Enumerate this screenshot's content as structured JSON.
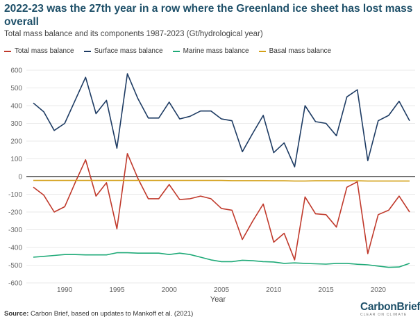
{
  "title": "2022-23 was the 27th year in a row where the Greenland ice sheet has lost mass overall",
  "subtitle": "Total mass balance and its components 1987-2023 (Gt/hydrological year)",
  "source": {
    "label": "Source:",
    "text": " Carbon Brief, based on updates to Mankoff et al. (2021)"
  },
  "logo": {
    "main": "CarbonBrief",
    "sub": "CLEAR ON CLIMATE"
  },
  "colors": {
    "total": "#c0392b",
    "surface": "#1d3b63",
    "marine": "#1faa78",
    "basal": "#d4a017",
    "grid": "#e3e3e3",
    "zero": "#222222"
  },
  "chart_data": {
    "type": "line",
    "xlabel": "Year",
    "ylabel": "",
    "xlim": [
      1987,
      2023
    ],
    "ylim": [
      -600,
      600
    ],
    "xticks": [
      1990,
      1995,
      2000,
      2005,
      2010,
      2015,
      2020
    ],
    "yticks": [
      600,
      500,
      400,
      300,
      200,
      100,
      0,
      -100,
      -200,
      -300,
      -400,
      -500,
      -600
    ],
    "x": [
      1987,
      1988,
      1989,
      1990,
      1991,
      1992,
      1993,
      1994,
      1995,
      1996,
      1997,
      1998,
      1999,
      2000,
      2001,
      2002,
      2003,
      2004,
      2005,
      2006,
      2007,
      2008,
      2009,
      2010,
      2011,
      2012,
      2013,
      2014,
      2015,
      2016,
      2017,
      2018,
      2019,
      2020,
      2021,
      2022,
      2023
    ],
    "series": [
      {
        "name": "Total mass balance",
        "key": "total",
        "values": [
          -60,
          -105,
          -200,
          -170,
          -35,
          95,
          -110,
          -35,
          -295,
          130,
          -10,
          -125,
          -125,
          -45,
          -130,
          -125,
          -110,
          -125,
          -180,
          -190,
          -355,
          -250,
          -155,
          -370,
          -320,
          -470,
          -115,
          -210,
          -215,
          -285,
          -60,
          -30,
          -435,
          -215,
          -190,
          -110,
          -200
        ]
      },
      {
        "name": "Surface mass balance",
        "key": "surface",
        "values": [
          415,
          365,
          260,
          300,
          430,
          560,
          355,
          430,
          160,
          580,
          440,
          330,
          330,
          420,
          325,
          340,
          370,
          370,
          325,
          315,
          140,
          245,
          345,
          135,
          190,
          55,
          400,
          310,
          300,
          230,
          450,
          490,
          90,
          315,
          345,
          425,
          315
        ]
      },
      {
        "name": "Marine mass balance",
        "key": "marine",
        "values": [
          -455,
          -450,
          -445,
          -440,
          -440,
          -442,
          -442,
          -442,
          -430,
          -430,
          -432,
          -432,
          -432,
          -440,
          -432,
          -440,
          -455,
          -470,
          -480,
          -480,
          -472,
          -475,
          -480,
          -482,
          -490,
          -487,
          -490,
          -492,
          -494,
          -490,
          -490,
          -495,
          -498,
          -505,
          -512,
          -510,
          -490
        ]
      },
      {
        "name": "Basal mass balance",
        "key": "basal",
        "values": [
          -22,
          -22,
          -22,
          -22,
          -22,
          -22,
          -22,
          -22,
          -22,
          -22,
          -22,
          -22,
          -22,
          -22,
          -22,
          -22,
          -22,
          -22,
          -22,
          -23,
          -23,
          -23,
          -23,
          -24,
          -24,
          -25,
          -25,
          -24,
          -24,
          -24,
          -24,
          -24,
          -25,
          -25,
          -25,
          -25,
          -25
        ]
      }
    ]
  }
}
